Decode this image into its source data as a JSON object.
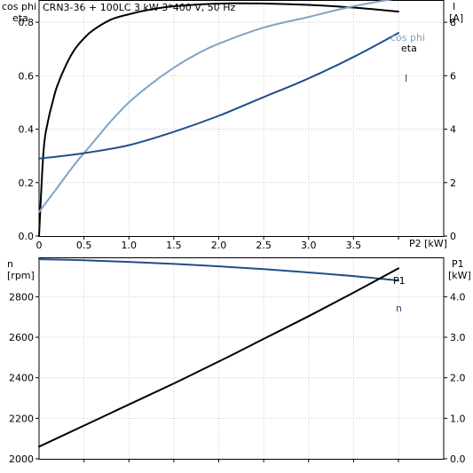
{
  "chart_data": [
    {
      "type": "line",
      "title": "CRN3-36 + 100LC   3 kW   3*400 V, 50 Hz",
      "xlabel": "P2 [kW]",
      "ylabel_left": [
        "cos phi",
        "eta"
      ],
      "ylabel_right": [
        "I",
        "[A]"
      ],
      "xlim": [
        0,
        4.0
      ],
      "xticks": [
        "0",
        "0.5",
        "1.0",
        "1.5",
        "2.0",
        "2.5",
        "3.0",
        "3.5"
      ],
      "ylim_left": [
        0,
        0.88
      ],
      "yticks_left": [
        "0.0",
        "0.2",
        "0.4",
        "0.6",
        "0.8"
      ],
      "ylim_right": [
        0,
        8.8
      ],
      "yticks_right": [
        "0",
        "2",
        "4",
        "6",
        "8"
      ],
      "grid": true,
      "series": [
        {
          "name": "eta",
          "axis": "left",
          "color": "#000000",
          "x": [
            0,
            0.05,
            0.1,
            0.15,
            0.2,
            0.3,
            0.4,
            0.5,
            0.6,
            0.8,
            1.0,
            1.2,
            1.5,
            2.0,
            2.5,
            3.0,
            3.5,
            4.0
          ],
          "y": [
            0,
            0.32,
            0.43,
            0.5,
            0.56,
            0.64,
            0.7,
            0.74,
            0.77,
            0.81,
            0.83,
            0.845,
            0.86,
            0.87,
            0.87,
            0.865,
            0.855,
            0.84
          ]
        },
        {
          "name": "cos phi",
          "axis": "left",
          "color": "#7fa3c7",
          "x": [
            0,
            0.2,
            0.4,
            0.6,
            0.8,
            1.0,
            1.25,
            1.5,
            1.75,
            2.0,
            2.5,
            3.0,
            3.5,
            4.0
          ],
          "y": [
            0.09,
            0.18,
            0.27,
            0.35,
            0.43,
            0.5,
            0.57,
            0.63,
            0.68,
            0.72,
            0.78,
            0.82,
            0.86,
            0.89
          ]
        },
        {
          "name": "I",
          "axis": "right",
          "color": "#1f4e8a",
          "x": [
            0,
            0.5,
            1.0,
            1.5,
            2.0,
            2.5,
            3.0,
            3.5,
            4.0
          ],
          "y": [
            2.9,
            3.1,
            3.4,
            3.9,
            4.5,
            5.2,
            5.9,
            6.7,
            7.6
          ]
        }
      ]
    },
    {
      "type": "line",
      "xlim": [
        0,
        4.0
      ],
      "ylabel_left": [
        "n",
        "[rpm]"
      ],
      "ylabel_right": [
        "P1",
        "[kW]"
      ],
      "ylim_left": [
        2000,
        2990
      ],
      "yticks_left": [
        "2000",
        "2200",
        "2400",
        "2600",
        "2800"
      ],
      "ylim_right": [
        0,
        4.95
      ],
      "yticks_right": [
        "0.0",
        "1.0",
        "2.0",
        "3.0",
        "4.0"
      ],
      "grid": true,
      "series": [
        {
          "name": "n",
          "axis": "left",
          "color": "#1f4e8a",
          "x": [
            0,
            0.5,
            1.0,
            1.5,
            2.0,
            2.5,
            3.0,
            3.5,
            4.0
          ],
          "y": [
            2985,
            2980,
            2972,
            2962,
            2950,
            2936,
            2920,
            2902,
            2880
          ]
        },
        {
          "name": "P1",
          "axis": "right",
          "color": "#000000",
          "x": [
            0,
            0.5,
            1.0,
            1.5,
            2.0,
            2.5,
            3.0,
            3.5,
            4.0
          ],
          "y": [
            0.3,
            0.82,
            1.34,
            1.86,
            2.4,
            2.96,
            3.52,
            4.1,
            4.7
          ]
        }
      ]
    }
  ]
}
